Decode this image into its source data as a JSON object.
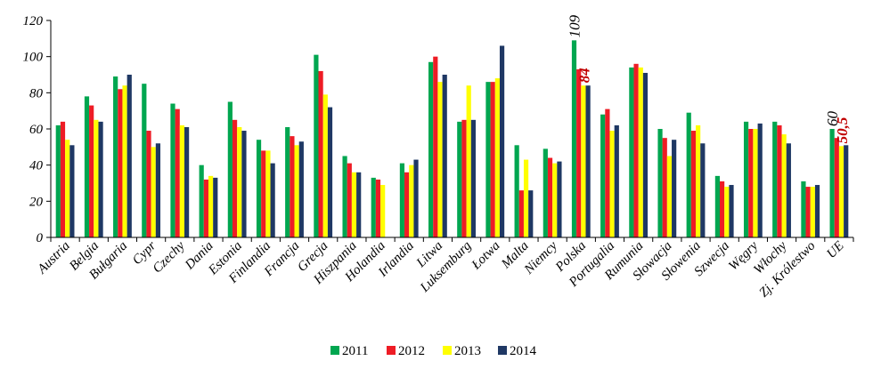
{
  "chart_data": {
    "type": "bar",
    "title": "",
    "xlabel": "",
    "ylabel": "",
    "ylim": [
      0,
      120
    ],
    "yticks": [
      0,
      20,
      40,
      60,
      80,
      100,
      120
    ],
    "yticks_text": [
      "0",
      "20",
      "40",
      "60",
      "80",
      "100",
      "120"
    ],
    "grid": false,
    "legend_position": "bottom",
    "categories": [
      "Austria",
      "Belgia",
      "Bułgaria",
      "Cypr",
      "Czechy",
      "Dania",
      "Estonia",
      "Finlandia",
      "Francja",
      "Grecja",
      "Hiszpania",
      "Holandia",
      "Irlandia",
      "Litwa",
      "Luksemburg",
      "Łotwa",
      "Malta",
      "Niemcy",
      "Polska",
      "Portugalia",
      "Rumunia",
      "Słowacja",
      "Słowenia",
      "Szwecja",
      "Węgry",
      "Włochy",
      "Zj. Królestwo",
      "UE"
    ],
    "series": [
      {
        "name": "2011",
        "color": "#00a650",
        "values": [
          62,
          78,
          89,
          85,
          74,
          40,
          75,
          54,
          61,
          101,
          45,
          33,
          41,
          97,
          64,
          86,
          51,
          49,
          109,
          68,
          94,
          60,
          69,
          34,
          64,
          64,
          31,
          60
        ]
      },
      {
        "name": "2012",
        "color": "#ee1c25",
        "values": [
          64,
          73,
          82,
          59,
          71,
          32,
          65,
          48,
          56,
          92,
          41,
          32,
          36,
          100,
          65,
          86,
          26,
          44,
          93,
          71,
          96,
          55,
          59,
          31,
          60,
          62,
          28,
          55
        ]
      },
      {
        "name": "2013",
        "color": "#ffff00",
        "values": [
          54,
          65,
          84,
          50,
          62,
          34,
          61,
          48,
          51,
          79,
          36,
          29,
          40,
          86,
          84,
          88,
          43,
          41,
          84,
          59,
          94,
          45,
          62,
          28,
          60,
          57,
          28,
          50.5
        ]
      },
      {
        "name": "2014",
        "color": "#1f3864",
        "values": [
          51,
          64,
          90,
          52,
          61,
          33,
          59,
          41,
          53,
          72,
          36,
          0,
          43,
          90,
          65,
          106,
          26,
          42,
          84,
          62,
          91,
          54,
          52,
          29,
          63,
          52,
          29,
          51
        ]
      }
    ],
    "annotations": [
      {
        "text": "109",
        "category": "Polska",
        "value": 109,
        "color": "#000000"
      },
      {
        "text": "84",
        "category": "Polska",
        "value": 84,
        "color": "#c00000"
      },
      {
        "text": "60",
        "category": "UE",
        "value": 60,
        "color": "#000000"
      },
      {
        "text": "50,5",
        "category": "UE",
        "value": 50.5,
        "color": "#c00000"
      }
    ]
  }
}
